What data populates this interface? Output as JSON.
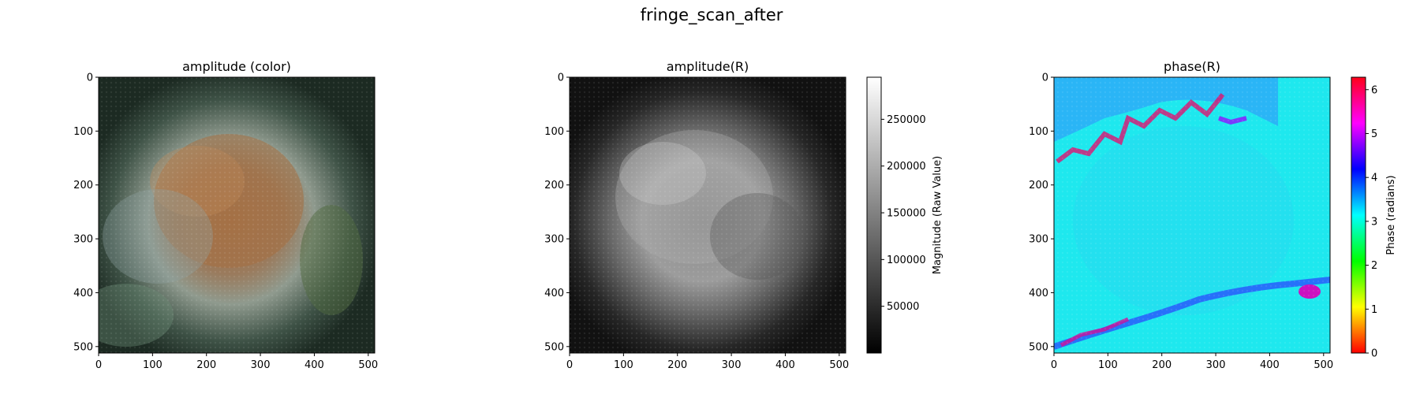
{
  "title": "fringe_scan_after",
  "chart_data": [
    {
      "type": "heatmap",
      "title": "amplitude (color)",
      "xlim": [
        0,
        512
      ],
      "ylim": [
        512,
        0
      ],
      "xticks": [
        0,
        100,
        200,
        300,
        400,
        500
      ],
      "yticks": [
        0,
        100,
        200,
        300,
        400,
        500
      ],
      "colormap": "rgb image",
      "colorbar": null
    },
    {
      "type": "heatmap",
      "title": "amplitude(R)",
      "xlim": [
        0,
        512
      ],
      "ylim": [
        512,
        0
      ],
      "xticks": [
        0,
        100,
        200,
        300,
        400,
        500
      ],
      "yticks": [
        0,
        100,
        200,
        300,
        400,
        500
      ],
      "colormap": "gray",
      "colorbar": {
        "label": "Magnitude (Raw Value)",
        "range": [
          0,
          295000
        ],
        "ticks": [
          50000,
          100000,
          150000,
          200000,
          250000
        ]
      }
    },
    {
      "type": "heatmap",
      "title": "phase(R)",
      "xlim": [
        0,
        512
      ],
      "ylim": [
        512,
        0
      ],
      "xticks": [
        0,
        100,
        200,
        300,
        400,
        500
      ],
      "yticks": [
        0,
        100,
        200,
        300,
        400,
        500
      ],
      "colormap": "hsv",
      "colorbar": {
        "label": "Phase (radians)",
        "range": [
          0,
          6.283
        ],
        "ticks": [
          0,
          1,
          2,
          3,
          4,
          5,
          6
        ]
      }
    }
  ]
}
